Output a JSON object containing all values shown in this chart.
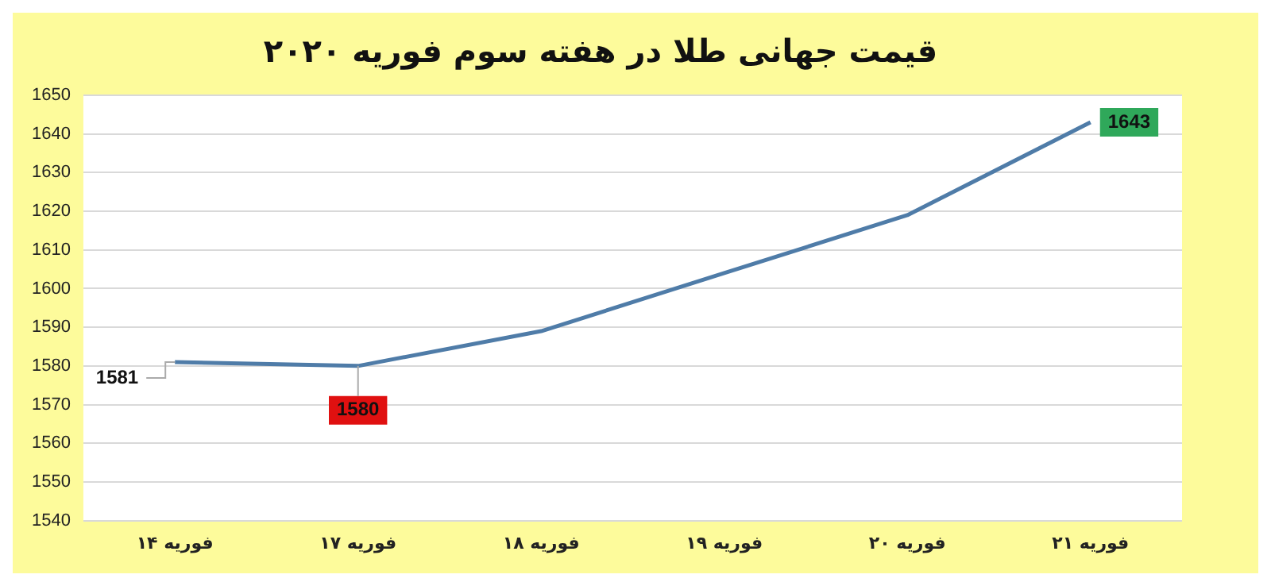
{
  "chart_data": {
    "type": "line",
    "title": "قیمت جهانی طلا در هفته سوم فوریه ۲۰۲۰",
    "categories": [
      "۱۴ فوریه",
      "۱۷ فوریه",
      "۱۸ فوریه",
      "۱۹ فوریه",
      "۲۰ فوریه",
      "۲۱ فوریه"
    ],
    "series": [
      {
        "color": "#4f7ca8",
        "values": [
          1581,
          1580,
          1589,
          1604,
          1619,
          1643
        ],
        "value_labels": [
          "1581",
          "1580",
          null,
          null,
          null,
          "1643"
        ]
      }
    ],
    "ylim": [
      1540,
      1650
    ],
    "yticks": [
      1540,
      1550,
      1560,
      1570,
      1580,
      1590,
      1600,
      1610,
      1620,
      1630,
      1640,
      1650
    ],
    "grid": "y",
    "legend": false,
    "marker": "none",
    "line_style": "solid"
  }
}
